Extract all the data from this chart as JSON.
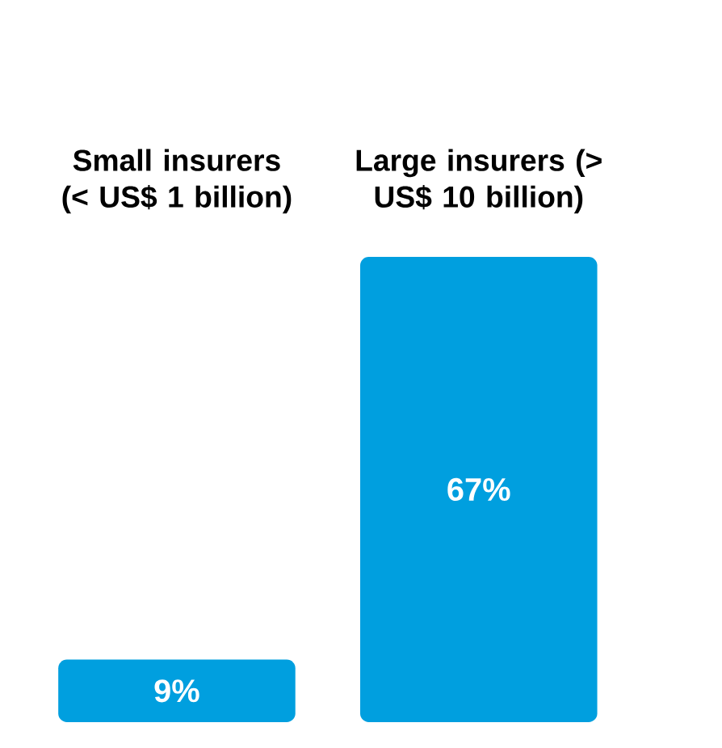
{
  "chart_data": {
    "type": "bar",
    "categories": [
      "Small insurers (< US$ 1 billion)",
      "Large insurers (> US$ 10 billion)"
    ],
    "values": [
      9,
      67
    ],
    "value_labels": [
      "9%",
      "67%"
    ],
    "color": "#009fdf",
    "relative": false
  }
}
